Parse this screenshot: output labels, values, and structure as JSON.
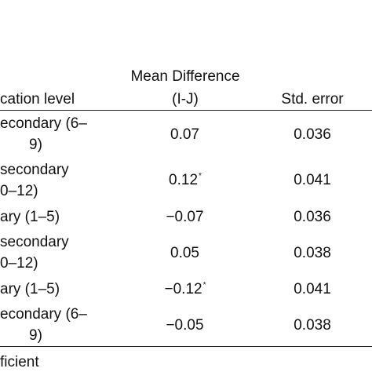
{
  "table": {
    "headers": {
      "education_level": "cation level",
      "mean_difference_line1": "Mean Difference",
      "mean_difference_line2": "(I-J)",
      "std_error": "Std. error"
    },
    "rows": [
      {
        "level_line1": "econdary (6–",
        "level_line2": "9)",
        "mean_difference": "0.07",
        "significant": "",
        "std_error": "0.036"
      },
      {
        "level_line1": " secondary",
        "level_line2": "0–12)",
        "mean_difference": "0.12",
        "significant": "*",
        "std_error": "0.041"
      },
      {
        "level_line1": "ary (1–5)",
        "level_line2": "",
        "mean_difference": "−0.07",
        "significant": "",
        "std_error": "0.036"
      },
      {
        "level_line1": " secondary",
        "level_line2": "0–12)",
        "mean_difference": "0.05",
        "significant": "",
        "std_error": "0.038"
      },
      {
        "level_line1": "ary (1–5)",
        "level_line2": "",
        "mean_difference": "−0.12",
        "significant": "*",
        "std_error": "0.041"
      },
      {
        "level_line1": "econdary (6–",
        "level_line2": "9)",
        "mean_difference": "−0.05",
        "significant": "",
        "std_error": "0.038"
      }
    ],
    "footer": "ficient"
  }
}
